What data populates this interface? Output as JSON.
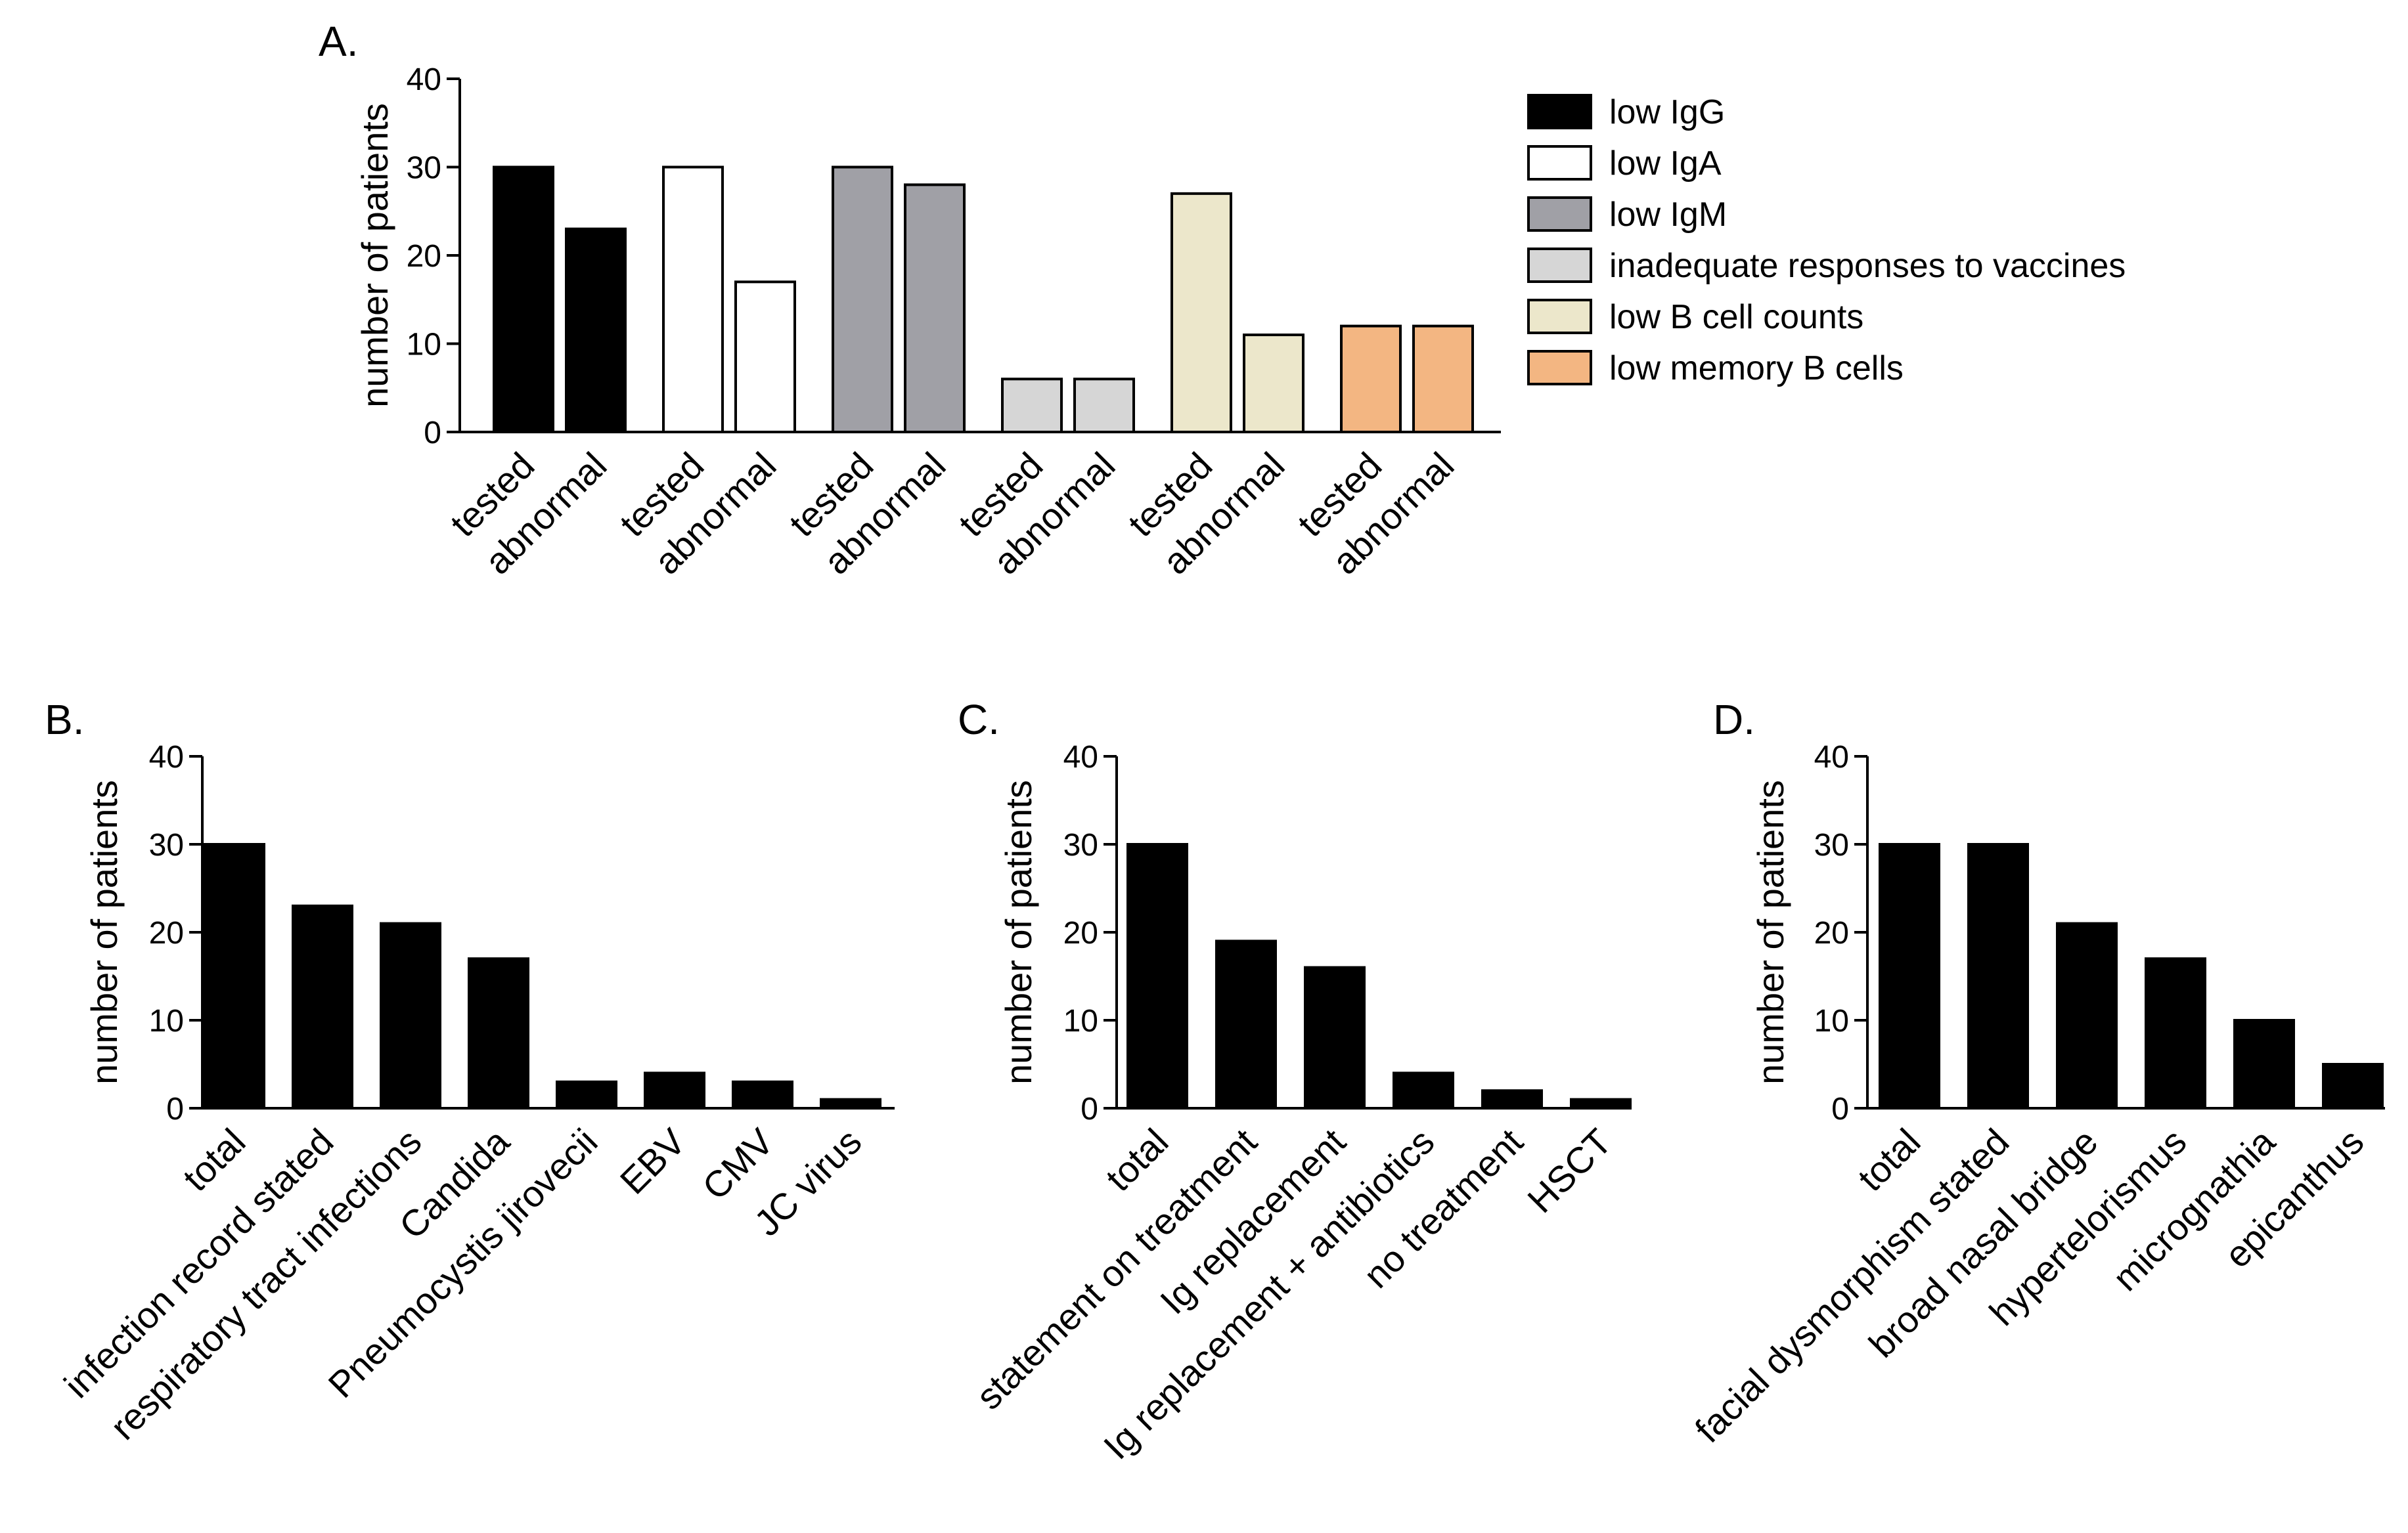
{
  "chart_data": [
    {
      "panel": "A.",
      "type": "bar",
      "title": "",
      "xlabel": "",
      "ylabel": "number of patients",
      "ylim": [
        0,
        40
      ],
      "yticks": [
        0,
        10,
        20,
        30,
        40
      ],
      "grid": false,
      "legend_position": "right",
      "groups": [
        {
          "legend": "low IgG",
          "color": "#000000",
          "labels": [
            "tested",
            "abnormal"
          ],
          "values": [
            30,
            23
          ]
        },
        {
          "legend": "low IgA",
          "color": "#ffffff",
          "labels": [
            "tested",
            "abnormal"
          ],
          "values": [
            30,
            17
          ]
        },
        {
          "legend": "low IgM",
          "color": "#a0a0a6",
          "labels": [
            "tested",
            "abnormal"
          ],
          "values": [
            30,
            28
          ]
        },
        {
          "legend": "inadequate responses to vaccines",
          "color": "#d6d6d6",
          "labels": [
            "tested",
            "abnormal"
          ],
          "values": [
            6,
            6
          ]
        },
        {
          "legend": "low B cell counts",
          "color": "#ece7cb",
          "labels": [
            "tested",
            "abnormal"
          ],
          "values": [
            27,
            11
          ]
        },
        {
          "legend": "low memory B cells",
          "color": "#f3b682",
          "labels": [
            "tested",
            "abnormal"
          ],
          "values": [
            12,
            12
          ]
        }
      ]
    },
    {
      "panel": "B.",
      "type": "bar",
      "title": "",
      "xlabel": "",
      "ylabel": "number of patients",
      "ylim": [
        0,
        40
      ],
      "yticks": [
        0,
        10,
        20,
        30,
        40
      ],
      "grid": false,
      "categories": [
        "total",
        "infection record stated",
        "respiratory tract infections",
        "Candida",
        "Pneumocystis jirovecii",
        "EBV",
        "CMV",
        "JC virus"
      ],
      "values": [
        30,
        23,
        21,
        17,
        3,
        4,
        3,
        1
      ],
      "color": "#000000"
    },
    {
      "panel": "C.",
      "type": "bar",
      "title": "",
      "xlabel": "",
      "ylabel": "number of patients",
      "ylim": [
        0,
        40
      ],
      "yticks": [
        0,
        10,
        20,
        30,
        40
      ],
      "grid": false,
      "categories": [
        "total",
        "statement on treatment",
        "Ig replacement",
        "Ig replacement + antibiotics",
        "no treatment",
        "HSCT"
      ],
      "values": [
        30,
        19,
        16,
        4,
        2,
        1
      ],
      "color": "#000000"
    },
    {
      "panel": "D.",
      "type": "bar",
      "title": "",
      "xlabel": "",
      "ylabel": "number of patients",
      "ylim": [
        0,
        40
      ],
      "yticks": [
        0,
        10,
        20,
        30,
        40
      ],
      "grid": false,
      "categories": [
        "total",
        "facial dysmorphism stated",
        "broad nasal bridge",
        "hypertelorismus",
        "micrognathia",
        "epicanthus"
      ],
      "values": [
        30,
        30,
        21,
        17,
        10,
        5
      ],
      "color": "#000000"
    }
  ]
}
